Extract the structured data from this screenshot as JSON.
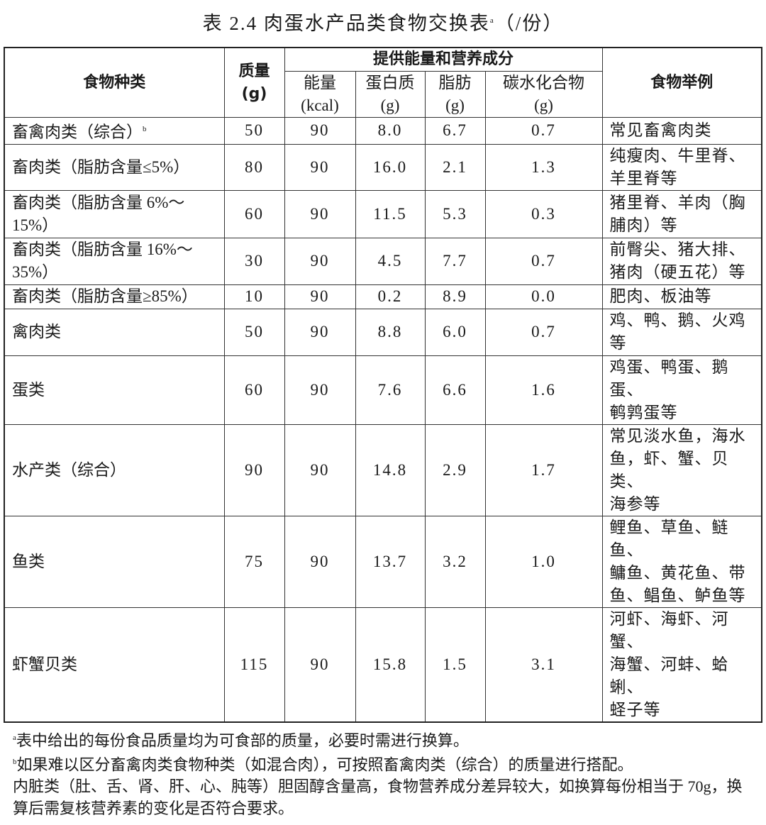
{
  "title": {
    "text": "表 2.4 肉蛋水产品类食物交换表",
    "sup": "a",
    "suffix": "（/份）"
  },
  "header": {
    "food_type": "食物种类",
    "mass": [
      "质量",
      "(g)"
    ],
    "group": "提供能量和营养成分",
    "energy": [
      "能量",
      "(kcal)"
    ],
    "protein": [
      "蛋白质",
      "(g)"
    ],
    "fat": [
      "脂肪",
      "(g)"
    ],
    "carb": [
      "碳水化合物",
      "(g)"
    ],
    "examples": "食物举例"
  },
  "rows": [
    {
      "name": [
        "畜禽肉类（综合）"
      ],
      "sup": "b",
      "mass": "50",
      "energy": "90",
      "protein": "8.0",
      "fat": "6.7",
      "carb": "0.7",
      "examples": [
        "常见畜禽肉类"
      ]
    },
    {
      "name": [
        "畜肉类（脂肪含量≤5%）"
      ],
      "mass": "80",
      "energy": "90",
      "protein": "16.0",
      "fat": "2.1",
      "carb": "1.3",
      "examples": [
        "纯瘦肉、牛里脊、",
        "羊里脊等"
      ]
    },
    {
      "name": [
        "畜肉类（脂肪含量 6%～",
        "15%）"
      ],
      "mass": "60",
      "energy": "90",
      "protein": "11.5",
      "fat": "5.3",
      "carb": "0.3",
      "examples": [
        "猪里脊、羊肉（胸",
        "脯肉）等"
      ]
    },
    {
      "name": [
        "畜肉类（脂肪含量 16%～",
        "35%）"
      ],
      "mass": "30",
      "energy": "90",
      "protein": "4.5",
      "fat": "7.7",
      "carb": "0.7",
      "examples": [
        "前臀尖、猪大排、",
        "猪肉（硬五花）等"
      ]
    },
    {
      "name": [
        "畜肉类（脂肪含量≥85%）"
      ],
      "mass": "10",
      "energy": "90",
      "protein": "0.2",
      "fat": "8.9",
      "carb": "0.0",
      "examples": [
        "肥肉、板油等"
      ]
    },
    {
      "name": [
        "禽肉类"
      ],
      "mass": "50",
      "energy": "90",
      "protein": "8.8",
      "fat": "6.0",
      "carb": "0.7",
      "examples": [
        "鸡、鸭、鹅、火鸡",
        "等"
      ]
    },
    {
      "name": [
        "蛋类"
      ],
      "mass": "60",
      "energy": "90",
      "protein": "7.6",
      "fat": "6.6",
      "carb": "1.6",
      "examples": [
        "鸡蛋、鸭蛋、鹅蛋、",
        "鹌鹑蛋等"
      ]
    },
    {
      "name": [
        "水产类（综合）"
      ],
      "mass": "90",
      "energy": "90",
      "protein": "14.8",
      "fat": "2.9",
      "carb": "1.7",
      "examples": [
        "常见淡水鱼，海水",
        "鱼，虾、蟹、贝类、",
        "海参等"
      ]
    },
    {
      "name": [
        "鱼类"
      ],
      "mass": "75",
      "energy": "90",
      "protein": "13.7",
      "fat": "3.2",
      "carb": "1.0",
      "examples": [
        "鲤鱼、草鱼、鲢鱼、",
        "鳙鱼、黄花鱼、带",
        "鱼、鲳鱼、鲈鱼等"
      ]
    },
    {
      "name": [
        "虾蟹贝类"
      ],
      "mass": "115",
      "energy": "90",
      "protein": "15.8",
      "fat": "1.5",
      "carb": "3.1",
      "examples": [
        "河虾、海虾、河蟹、",
        "海蟹、河蚌、蛤蜊、",
        "蛏子等"
      ]
    }
  ],
  "notes": [
    {
      "sup": "a",
      "text": "表中给出的每份食品质量均为可食部的质量，必要时需进行换算。"
    },
    {
      "sup": "b",
      "text": "如果难以区分畜禽肉类食物种类（如混合肉），可按照畜禽肉类（综合）的质量进行搭配。"
    },
    {
      "sup": "",
      "text": "内脏类（肚、舌、肾、肝、心、肫等）胆固醇含量高，食物营养成分差异较大，如换算每份相当于 70g，换算后需复核营养素的变化是否符合要求。"
    }
  ]
}
